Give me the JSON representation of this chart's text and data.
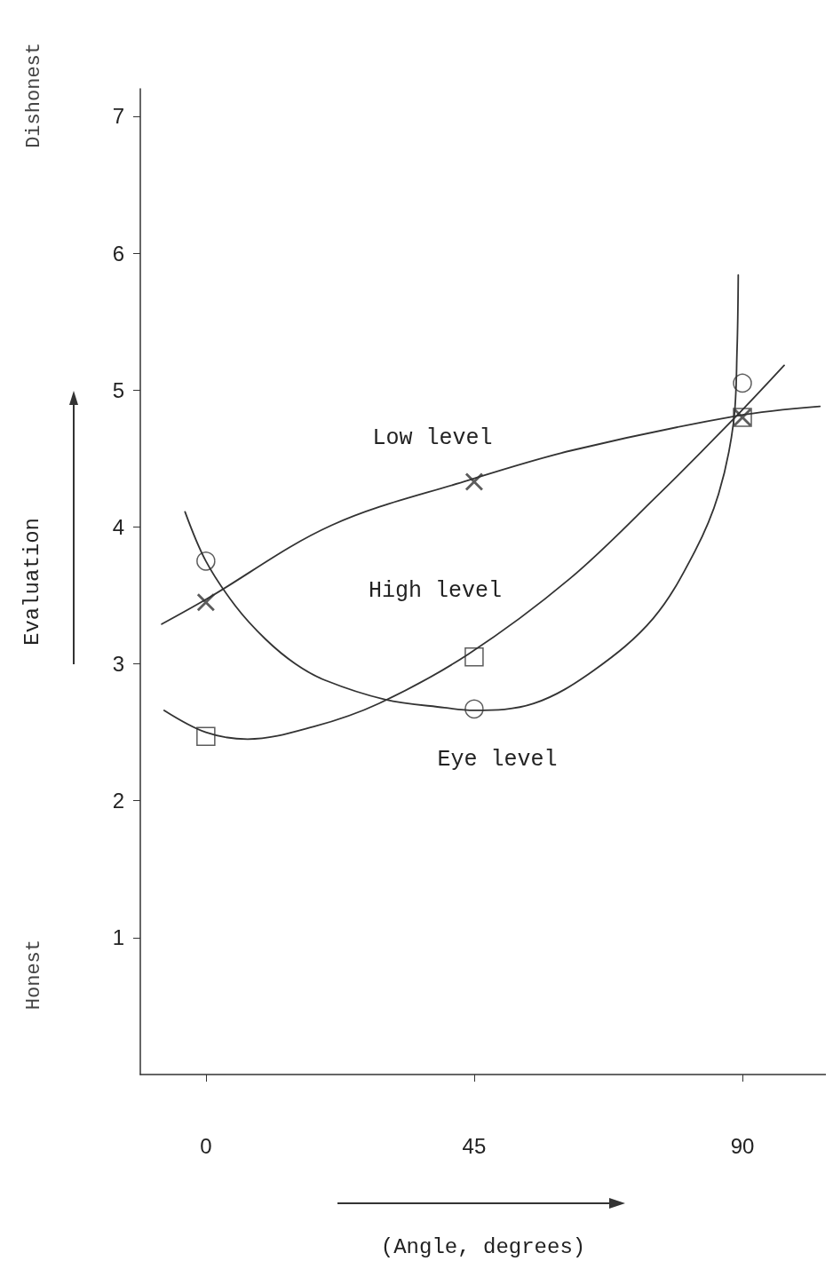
{
  "chart_data": {
    "type": "scatter",
    "xlabel": "(Angle, degrees)",
    "ylabel": "Evaluation",
    "xlim": [
      -11,
      104
    ],
    "xticks": [
      0,
      45,
      90
    ],
    "ylim": [
      0,
      7.2
    ],
    "yticks": [
      1,
      2,
      3,
      4,
      5,
      6,
      7
    ],
    "grid": false,
    "annotations": [
      "Dishonest",
      "Honest",
      "Low level",
      "High level",
      "Eye level"
    ],
    "series": [
      {
        "marker": "cross",
        "color": "#333333",
        "x": [
          0,
          45,
          90
        ],
        "values": [
          3.45,
          4.33,
          4.8
        ]
      },
      {
        "type": "line",
        "marker": "none",
        "color": "#333333",
        "x": [
          -7.4,
          0,
          21,
          44,
          61.5,
          89,
          103
        ],
        "values": [
          3.29,
          3.47,
          4.01,
          4.34,
          4.56,
          4.81,
          4.88
        ]
      },
      {
        "marker": "circle",
        "color": "#333333",
        "x": [
          0,
          45,
          90
        ],
        "values": [
          3.75,
          2.67,
          5.05
        ]
      },
      {
        "type": "line",
        "marker": "none",
        "color": "#333333",
        "x": [
          -3.5,
          0,
          5,
          10,
          15,
          20,
          30,
          40,
          45,
          55,
          65,
          75,
          82,
          86,
          88.5,
          89.1,
          89.3
        ],
        "values": [
          4.11,
          3.75,
          3.42,
          3.18,
          3.0,
          2.88,
          2.74,
          2.68,
          2.66,
          2.71,
          2.95,
          3.33,
          3.82,
          4.24,
          4.76,
          5.3,
          5.84
        ]
      },
      {
        "marker": "square",
        "color": "#333333",
        "x": [
          0,
          45,
          90
        ],
        "values": [
          2.47,
          3.05,
          4.8
        ]
      },
      {
        "type": "line",
        "marker": "none",
        "color": "#333333",
        "x": [
          -7,
          0,
          7,
          18,
          29,
          44,
          61,
          76,
          89,
          97
        ],
        "values": [
          2.66,
          2.5,
          2.45,
          2.54,
          2.71,
          3.07,
          3.62,
          4.24,
          4.81,
          5.18
        ]
      }
    ]
  }
}
